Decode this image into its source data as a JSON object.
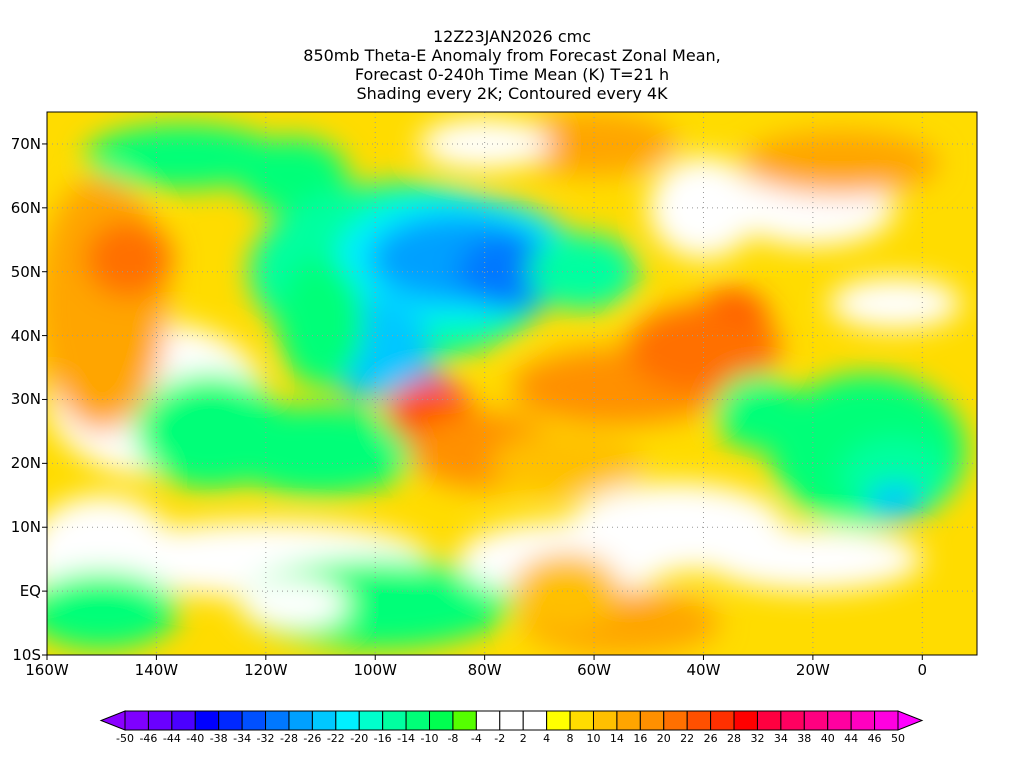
{
  "title": {
    "lines": [
      "12Z23JAN2026 cmc",
      "850mb Theta-E Anomaly from Forecast Zonal Mean,",
      "Forecast 0-240h Time Mean (K) T=21 h",
      "Shading every 2K; Contoured every 4K"
    ]
  },
  "axes": {
    "lat_labels": [
      "70N",
      "60N",
      "50N",
      "40N",
      "30N",
      "20N",
      "10N",
      "EQ",
      "10S"
    ],
    "lat_values": [
      70,
      60,
      50,
      40,
      30,
      20,
      10,
      0,
      -10
    ],
    "lon_labels": [
      "160W",
      "140W",
      "120W",
      "100W",
      "80W",
      "60W",
      "40W",
      "20W",
      "0"
    ],
    "lon_values": [
      -160,
      -140,
      -120,
      -100,
      -80,
      -60,
      -40,
      -20,
      0
    ],
    "lat_range": [
      -10,
      75
    ],
    "lon_range": [
      -160,
      10
    ]
  },
  "colorbar": {
    "labels": [
      "-50",
      "-46",
      "-44",
      "-40",
      "-38",
      "-34",
      "-32",
      "-28",
      "-26",
      "-22",
      "-20",
      "-16",
      "-14",
      "-10",
      "-8",
      "-4",
      "-2",
      "2",
      "4",
      "8",
      "10",
      "14",
      "16",
      "20",
      "22",
      "26",
      "28",
      "32",
      "34",
      "38",
      "40",
      "44",
      "46",
      "50"
    ],
    "colors": [
      "#7f00ff",
      "#6a00ff",
      "#4b00ff",
      "#0000ff",
      "#0028ff",
      "#0050ff",
      "#0078ff",
      "#00a0ff",
      "#00c8ff",
      "#00f0ff",
      "#00ffcc",
      "#00ffa0",
      "#00ff78",
      "#00ff50",
      "#55ff00",
      "#ffffff",
      "#ffffff",
      "#ffffff",
      "#ffff00",
      "#ffdc00",
      "#ffc000",
      "#ffa500",
      "#ff9000",
      "#ff7000",
      "#ff5000",
      "#ff3000",
      "#ff0000",
      "#ff0040",
      "#ff0060",
      "#ff0080",
      "#ff00a0",
      "#ff00c0",
      "#ff00e0"
    ],
    "under_color": "#8b00ff",
    "over_color": "#ff00ff"
  }
}
